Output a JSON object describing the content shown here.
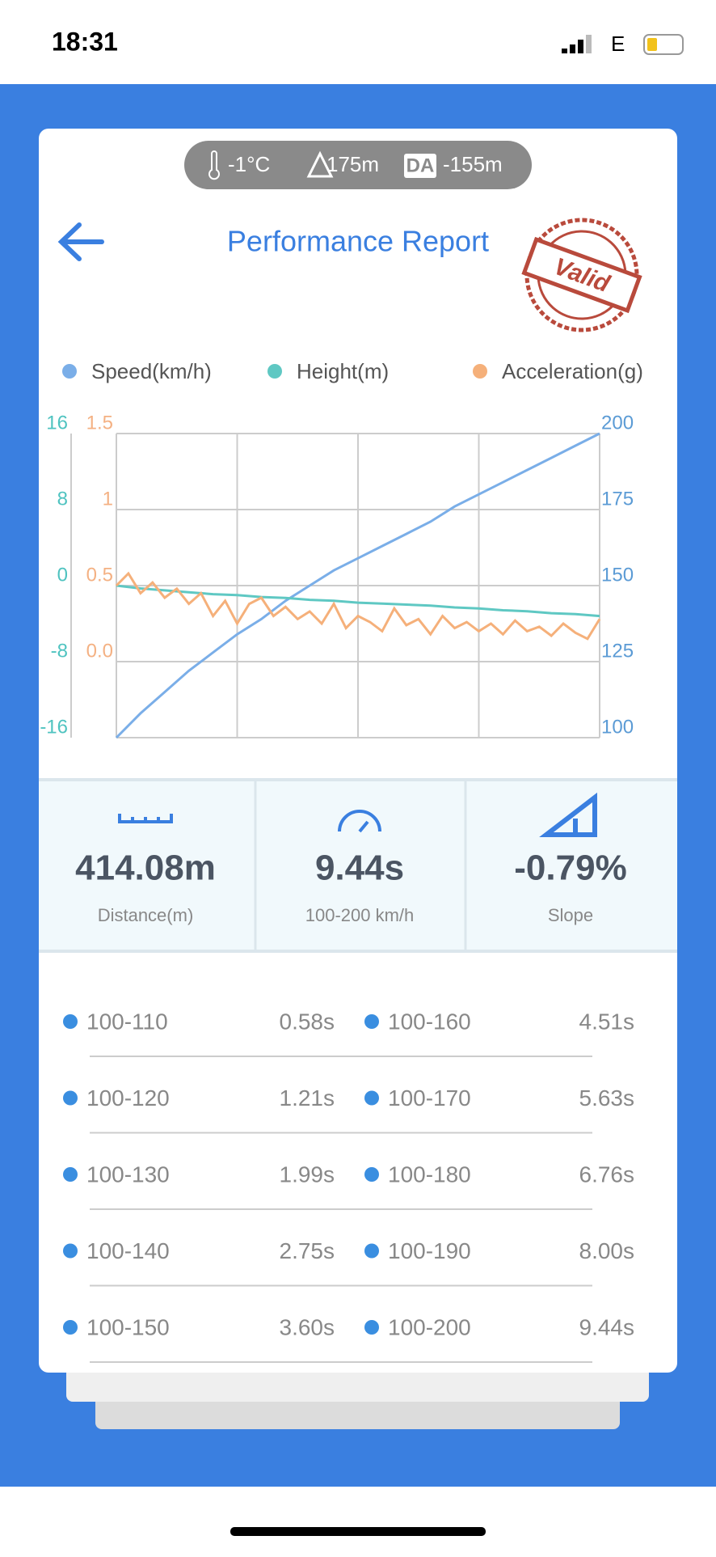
{
  "status": {
    "time": "18:31",
    "network": "E"
  },
  "conditions": {
    "temperature": "-1°C",
    "altitude": "175m",
    "da_label": "DA",
    "density_altitude": "-155m"
  },
  "header": {
    "title": "Performance Report",
    "stamp": "Valid"
  },
  "chart_data": {
    "type": "line",
    "ylim": [
      -16,
      16
    ],
    "yticks": [
      -16,
      -8,
      0,
      8,
      16
    ],
    "ycolor": "#4fc3c0",
    "y2lim": [
      -0.5,
      1.5
    ],
    "y2ticks": [
      {
        "value": 0,
        "label": "0.0"
      },
      0.5,
      1,
      1.5
    ],
    "y2color": "#f4b183",
    "y3lim": [
      100,
      200
    ],
    "y3ticks": [
      100,
      125,
      150,
      175,
      200
    ],
    "y3color": "#5b9bd5",
    "grid": true,
    "series": [
      {
        "name": "Speed(km/h)",
        "color": "#7aaee8",
        "axis": "y3",
        "values": [
          100,
          108,
          115,
          122,
          128,
          134,
          139,
          145,
          150,
          155,
          159,
          163,
          167,
          171,
          176,
          180,
          184,
          188,
          192,
          196,
          200
        ]
      },
      {
        "name": "Height(m)",
        "color": "#5fc8c3",
        "axis": "y",
        "values": [
          0,
          -0.3,
          -0.5,
          -0.7,
          -0.9,
          -1.0,
          -1.2,
          -1.3,
          -1.5,
          -1.6,
          -1.8,
          -1.9,
          -2.0,
          -2.1,
          -2.3,
          -2.4,
          -2.6,
          -2.7,
          -2.9,
          -3.0,
          -3.2
        ]
      },
      {
        "name": "Acceleration(g)",
        "color": "#f5b07a",
        "axis": "y2",
        "values": [
          0.5,
          0.58,
          0.45,
          0.52,
          0.42,
          0.48,
          0.38,
          0.45,
          0.3,
          0.4,
          0.25,
          0.38,
          0.42,
          0.3,
          0.36,
          0.28,
          0.33,
          0.25,
          0.38,
          0.22,
          0.3,
          0.26,
          0.2,
          0.35,
          0.24,
          0.28,
          0.18,
          0.3,
          0.22,
          0.26,
          0.2,
          0.25,
          0.18,
          0.27,
          0.2,
          0.23,
          0.17,
          0.25,
          0.19,
          0.15,
          0.28
        ]
      }
    ]
  },
  "stats": [
    {
      "value": "414.08m",
      "label": "Distance(m)"
    },
    {
      "value": "9.44s",
      "label": "100-200 km/h"
    },
    {
      "value": "-0.79%",
      "label": "Slope"
    }
  ],
  "splits": [
    {
      "range": "100-110",
      "time": "0.58s"
    },
    {
      "range": "100-120",
      "time": "1.21s"
    },
    {
      "range": "100-130",
      "time": "1.99s"
    },
    {
      "range": "100-140",
      "time": "2.75s"
    },
    {
      "range": "100-150",
      "time": "3.60s"
    },
    {
      "range": "100-160",
      "time": "4.51s"
    },
    {
      "range": "100-170",
      "time": "5.63s"
    },
    {
      "range": "100-180",
      "time": "6.76s"
    },
    {
      "range": "100-190",
      "time": "8.00s"
    },
    {
      "range": "100-200",
      "time": "9.44s"
    }
  ]
}
